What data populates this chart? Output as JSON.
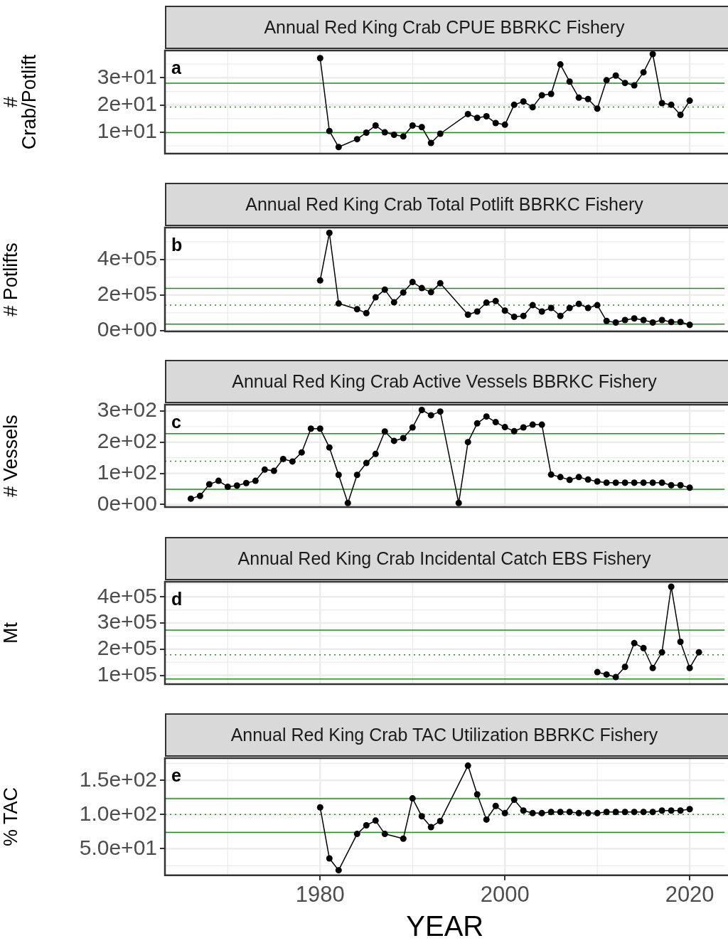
{
  "chart_data": [
    {
      "type": "line",
      "title": "Annual Red King Crab CPUE BBRKC Fishery",
      "ylabel": "#\nCrab/Potlift",
      "x": [
        1980,
        1981,
        1982,
        1984,
        1985,
        1986,
        1987,
        1988,
        1989,
        1990,
        1991,
        1992,
        1993,
        1996,
        1997,
        1998,
        1999,
        2000,
        2001,
        2002,
        2003,
        2004,
        2005,
        2006,
        2007,
        2008,
        2009,
        2010,
        2011,
        2012,
        2013,
        2014,
        2015,
        2016,
        2017,
        2018,
        2019,
        2020
      ],
      "series": [
        {
          "color": "#000000",
          "values": [
            37.2,
            10.5,
            4.6,
            7.5,
            9.9,
            12.5,
            10,
            9.1,
            8.5,
            12.5,
            11.9,
            6.1,
            9.5,
            16.7,
            15.3,
            15.9,
            13.4,
            12.8,
            20.1,
            21.3,
            19.2,
            23.6,
            24.1,
            34.9,
            28.6,
            22.7,
            22.2,
            18.7,
            29.1,
            30.8,
            28.1,
            27.2,
            32.0,
            38.7,
            20.7,
            20.1,
            16.4,
            21.6
          ]
        }
      ],
      "xlim": [
        1963.2,
        2023.8
      ],
      "xticks": [
        1980,
        2000,
        2020
      ],
      "ylim": [
        2.2,
        40
      ],
      "yticks": [
        {
          "value": 10,
          "label": "1e+01"
        },
        {
          "value": 20,
          "label": "2e+01"
        },
        {
          "value": 30,
          "label": "3e+01"
        }
      ],
      "ref_lines": [
        {
          "axis": "y",
          "value": 28,
          "color": "#228b22",
          "line_style": "solid"
        },
        {
          "axis": "y",
          "value": 19.3,
          "color": "#228b22",
          "line_style": "dotted"
        },
        {
          "axis": "y",
          "value": 9.9,
          "color": "#228b22",
          "line_style": "solid"
        }
      ],
      "annotations": [
        "a"
      ],
      "grid": true,
      "marker": "circle",
      "line_style": "solid",
      "tick_labels": "y"
    },
    {
      "type": "line",
      "title": "Annual Red King Crab Total Potlift BBRKC Fishery",
      "ylabel": "# Potlifts",
      "x": [
        1980,
        1981,
        1982,
        1984,
        1985,
        1986,
        1987,
        1988,
        1989,
        1990,
        1991,
        1992,
        1993,
        1996,
        1997,
        1998,
        1999,
        2000,
        2001,
        2002,
        2003,
        2004,
        2005,
        2006,
        2007,
        2008,
        2009,
        2010,
        2011,
        2012,
        2013,
        2014,
        2015,
        2016,
        2017,
        2018,
        2019,
        2020
      ],
      "series": [
        {
          "color": "#000000",
          "values": [
            282000,
            550000,
            152000,
            120000,
            98000,
            187000,
            230000,
            159000,
            214000,
            273000,
            239000,
            216000,
            266000,
            89000,
            107000,
            157000,
            166000,
            112000,
            77000,
            82000,
            143000,
            107000,
            127000,
            82000,
            127000,
            150000,
            127000,
            143000,
            54000,
            45000,
            59000,
            68000,
            59000,
            45000,
            59000,
            48000,
            48000,
            32000
          ]
        }
      ],
      "xlim": [
        1963.2,
        2023.8
      ],
      "xticks": [
        1980,
        2000,
        2020
      ],
      "ylim": [
        -5000,
        580000
      ],
      "yticks": [
        {
          "value": 0,
          "label": "0e+00"
        },
        {
          "value": 200000,
          "label": "2e+05"
        },
        {
          "value": 400000,
          "label": "4e+05"
        }
      ],
      "ref_lines": [
        {
          "axis": "y",
          "value": 237000,
          "color": "#228b22",
          "line_style": "solid"
        },
        {
          "axis": "y",
          "value": 143000,
          "color": "#228b22",
          "line_style": "dotted"
        },
        {
          "axis": "y",
          "value": 36000,
          "color": "#228b22",
          "line_style": "solid"
        }
      ],
      "annotations": [
        "b"
      ],
      "grid": true,
      "marker": "circle",
      "line_style": "solid",
      "tick_labels": "y"
    },
    {
      "type": "line",
      "title": "Annual Red King Crab Active Vessels BBRKC Fishery",
      "ylabel": "# Vessels",
      "x": [
        1966,
        1967,
        1968,
        1969,
        1970,
        1971,
        1972,
        1973,
        1974,
        1975,
        1976,
        1977,
        1978,
        1979,
        1980,
        1981,
        1982,
        1983,
        1984,
        1985,
        1986,
        1987,
        1988,
        1989,
        1990,
        1991,
        1992,
        1993,
        1995,
        1996,
        1997,
        1998,
        1999,
        2000,
        2001,
        2002,
        2003,
        2004,
        2005,
        2006,
        2007,
        2008,
        2009,
        2010,
        2011,
        2012,
        2013,
        2014,
        2015,
        2016,
        2017,
        2018,
        2019,
        2020
      ],
      "series": [
        {
          "color": "#000000",
          "values": [
            19,
            28,
            65,
            76,
            57,
            61,
            69,
            76,
            112,
            108,
            146,
            138,
            167,
            243,
            243,
            183,
            95,
            5,
            95,
            133,
            162,
            234,
            204,
            213,
            247,
            303,
            286,
            298,
            5,
            200,
            260,
            282,
            264,
            248,
            235,
            247,
            256,
            256,
            96,
            88,
            79,
            88,
            80,
            74,
            70,
            70,
            70,
            70,
            70,
            70,
            70,
            62,
            62,
            54
          ]
        }
      ],
      "xlim": [
        1963.2,
        2023.8
      ],
      "xticks": [
        1980,
        2000,
        2020
      ],
      "ylim": [
        -8,
        320
      ],
      "yticks": [
        {
          "value": 0,
          "label": "0e+00"
        },
        {
          "value": 100,
          "label": "1e+02"
        },
        {
          "value": 200,
          "label": "2e+02"
        },
        {
          "value": 300,
          "label": "3e+02"
        }
      ],
      "ref_lines": [
        {
          "axis": "y",
          "value": 227,
          "color": "#228b22",
          "line_style": "solid"
        },
        {
          "axis": "y",
          "value": 139,
          "color": "#228b22",
          "line_style": "dotted"
        },
        {
          "axis": "y",
          "value": 49,
          "color": "#228b22",
          "line_style": "solid"
        }
      ],
      "annotations": [
        "c"
      ],
      "grid": true,
      "marker": "circle",
      "line_style": "solid",
      "tick_labels": "y"
    },
    {
      "type": "line",
      "title": "Annual Red King Crab Incidental Catch EBS Fishery",
      "ylabel": "Mt",
      "x": [
        2010,
        2011,
        2012,
        2013,
        2014,
        2015,
        2016,
        2017,
        2018,
        2019,
        2020,
        2021
      ],
      "series": [
        {
          "color": "#000000",
          "values": [
            112000,
            103000,
            93000,
            132000,
            223000,
            204000,
            128000,
            188000,
            439000,
            228000,
            128000,
            188000
          ]
        }
      ],
      "xlim": [
        1963.2,
        2023.8
      ],
      "xticks": [
        1980,
        2000,
        2020
      ],
      "ylim": [
        66000,
        458000
      ],
      "yticks": [
        {
          "value": 100000,
          "label": "1e+05"
        },
        {
          "value": 200000,
          "label": "2e+05"
        },
        {
          "value": 300000,
          "label": "3e+05"
        },
        {
          "value": 400000,
          "label": "4e+05"
        }
      ],
      "ref_lines": [
        {
          "axis": "y",
          "value": 273000,
          "color": "#228b22",
          "line_style": "solid"
        },
        {
          "axis": "y",
          "value": 178000,
          "color": "#228b22",
          "line_style": "dotted"
        },
        {
          "axis": "y",
          "value": 86000,
          "color": "#228b22",
          "line_style": "solid"
        }
      ],
      "annotations": [
        "d"
      ],
      "grid": true,
      "marker": "circle",
      "line_style": "solid",
      "tick_labels": "y"
    },
    {
      "type": "line",
      "title": "Annual Red King Crab TAC Utilization BBRKC Fishery",
      "ylabel": "% TAC",
      "xlabel": "YEAR",
      "x": [
        1980,
        1981,
        1982,
        1984,
        1985,
        1986,
        1987,
        1989,
        1990,
        1991,
        1992,
        1993,
        1996,
        1997,
        1998,
        1999,
        2000,
        2001,
        2002,
        2003,
        2004,
        2005,
        2006,
        2007,
        2008,
        2009,
        2010,
        2011,
        2012,
        2013,
        2014,
        2015,
        2016,
        2017,
        2018,
        2019,
        2020
      ],
      "series": [
        {
          "color": "#000000",
          "values": [
            110.5,
            35.8,
            18.4,
            71.6,
            84.2,
            91.1,
            71.6,
            64.7,
            123.7,
            97.4,
            81.6,
            90.5,
            171.6,
            129.5,
            92.6,
            112.6,
            102.1,
            121.6,
            105.8,
            102.1,
            102.1,
            103.7,
            103.7,
            103.7,
            102.1,
            102.1,
            102.1,
            103.7,
            103.7,
            103.7,
            103.7,
            103.7,
            103.7,
            105.8,
            105.8,
            105.8,
            107.9
          ]
        }
      ],
      "xlim": [
        1963.2,
        2023.8
      ],
      "xticks": [
        1980,
        2000,
        2020
      ],
      "ylim": [
        11,
        182.6
      ],
      "yticks": [
        {
          "value": 50,
          "label": "5.0e+01"
        },
        {
          "value": 100,
          "label": "1.0e+02"
        },
        {
          "value": 150,
          "label": "1.5e+02"
        }
      ],
      "ref_lines": [
        {
          "axis": "y",
          "value": 123.2,
          "color": "#228b22",
          "line_style": "solid"
        },
        {
          "axis": "y",
          "value": 100,
          "color": "#228b22",
          "line_style": "dotted"
        },
        {
          "axis": "y",
          "value": 73.7,
          "color": "#228b22",
          "line_style": "solid"
        }
      ],
      "annotations": [
        "e"
      ],
      "grid": true,
      "marker": "circle",
      "line_style": "solid"
    }
  ]
}
